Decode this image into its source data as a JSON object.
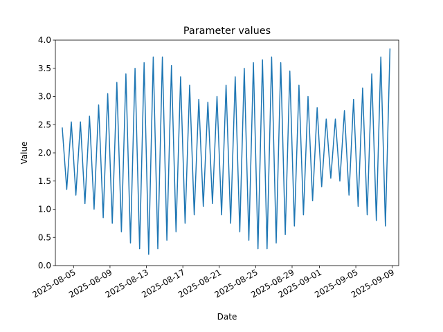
{
  "chart_data": {
    "type": "line",
    "title": "Parameter values",
    "xlabel": "Date",
    "ylabel": "Value",
    "x_range": [
      "2025-08-03T00:00",
      "2025-09-09T17:00"
    ],
    "ylim": [
      0.0,
      4.0
    ],
    "yticks": [
      {
        "value": 0.0,
        "label": "0.0"
      },
      {
        "value": 0.5,
        "label": "0.5"
      },
      {
        "value": 1.0,
        "label": "1.0"
      },
      {
        "value": 1.5,
        "label": "1.5"
      },
      {
        "value": 2.0,
        "label": "2.0"
      },
      {
        "value": 2.5,
        "label": "2.5"
      },
      {
        "value": 3.0,
        "label": "3.0"
      },
      {
        "value": 3.5,
        "label": "3.5"
      },
      {
        "value": 4.0,
        "label": "4.0"
      }
    ],
    "xticks": [
      {
        "value": "2025-08-05",
        "label": "2025-08-05"
      },
      {
        "value": "2025-08-09",
        "label": "2025-08-09"
      },
      {
        "value": "2025-08-13",
        "label": "2025-08-13"
      },
      {
        "value": "2025-08-17",
        "label": "2025-08-17"
      },
      {
        "value": "2025-08-21",
        "label": "2025-08-21"
      },
      {
        "value": "2025-08-25",
        "label": "2025-08-25"
      },
      {
        "value": "2025-08-29",
        "label": "2025-08-29"
      },
      {
        "value": "2025-09-01",
        "label": "2025-09-01"
      },
      {
        "value": "2025-09-05",
        "label": "2025-09-05"
      },
      {
        "value": "2025-09-09",
        "label": "2025-09-09"
      }
    ],
    "grid": false,
    "legend": "none",
    "series": [
      {
        "color": "#1f77b4",
        "x": [
          "2025-08-03T18:00",
          "2025-08-04T06:00",
          "2025-08-04T18:00",
          "2025-08-05T06:00",
          "2025-08-05T18:00",
          "2025-08-06T06:00",
          "2025-08-06T18:00",
          "2025-08-07T06:00",
          "2025-08-07T18:00",
          "2025-08-08T06:00",
          "2025-08-08T18:00",
          "2025-08-09T06:00",
          "2025-08-09T18:00",
          "2025-08-10T06:00",
          "2025-08-10T18:00",
          "2025-08-11T06:00",
          "2025-08-11T18:00",
          "2025-08-12T06:00",
          "2025-08-12T18:00",
          "2025-08-13T06:00",
          "2025-08-13T18:00",
          "2025-08-14T06:00",
          "2025-08-14T18:00",
          "2025-08-15T06:00",
          "2025-08-15T18:00",
          "2025-08-16T06:00",
          "2025-08-16T18:00",
          "2025-08-17T06:00",
          "2025-08-17T18:00",
          "2025-08-18T06:00",
          "2025-08-18T18:00",
          "2025-08-19T06:00",
          "2025-08-19T18:00",
          "2025-08-20T06:00",
          "2025-08-20T18:00",
          "2025-08-21T06:00",
          "2025-08-21T18:00",
          "2025-08-22T06:00",
          "2025-08-22T18:00",
          "2025-08-23T06:00",
          "2025-08-23T18:00",
          "2025-08-24T06:00",
          "2025-08-24T18:00",
          "2025-08-25T06:00",
          "2025-08-25T18:00",
          "2025-08-26T06:00",
          "2025-08-26T18:00",
          "2025-08-27T06:00",
          "2025-08-27T18:00",
          "2025-08-28T06:00",
          "2025-08-28T18:00",
          "2025-08-29T06:00",
          "2025-08-29T18:00",
          "2025-08-30T06:00",
          "2025-08-30T18:00",
          "2025-08-31T06:00",
          "2025-08-31T18:00",
          "2025-09-01T06:00",
          "2025-09-01T18:00",
          "2025-09-02T06:00",
          "2025-09-02T18:00",
          "2025-09-03T06:00",
          "2025-09-03T18:00",
          "2025-09-04T06:00",
          "2025-09-04T18:00",
          "2025-09-05T06:00",
          "2025-09-05T18:00",
          "2025-09-06T06:00",
          "2025-09-06T18:00",
          "2025-09-07T06:00",
          "2025-09-07T18:00",
          "2025-09-08T06:00",
          "2025-09-08T18:00"
        ],
        "y": [
          2.45,
          1.35,
          2.55,
          1.25,
          2.55,
          1.1,
          2.65,
          1.0,
          2.85,
          0.85,
          3.05,
          0.75,
          3.25,
          0.6,
          3.4,
          0.4,
          3.5,
          0.3,
          3.6,
          0.2,
          3.7,
          0.3,
          3.7,
          0.45,
          3.55,
          0.6,
          3.35,
          0.75,
          3.2,
          0.9,
          2.95,
          1.05,
          2.9,
          1.1,
          3.0,
          0.9,
          3.2,
          0.75,
          3.35,
          0.6,
          3.5,
          0.45,
          3.6,
          0.3,
          3.65,
          0.3,
          3.7,
          0.4,
          3.6,
          0.55,
          3.45,
          0.7,
          3.2,
          0.9,
          3.0,
          1.15,
          2.8,
          1.4,
          2.6,
          1.55,
          2.6,
          1.5,
          2.75,
          1.25,
          2.95,
          1.05,
          3.15,
          0.9,
          3.4,
          0.8,
          3.7,
          0.7,
          3.85
        ]
      }
    ]
  }
}
